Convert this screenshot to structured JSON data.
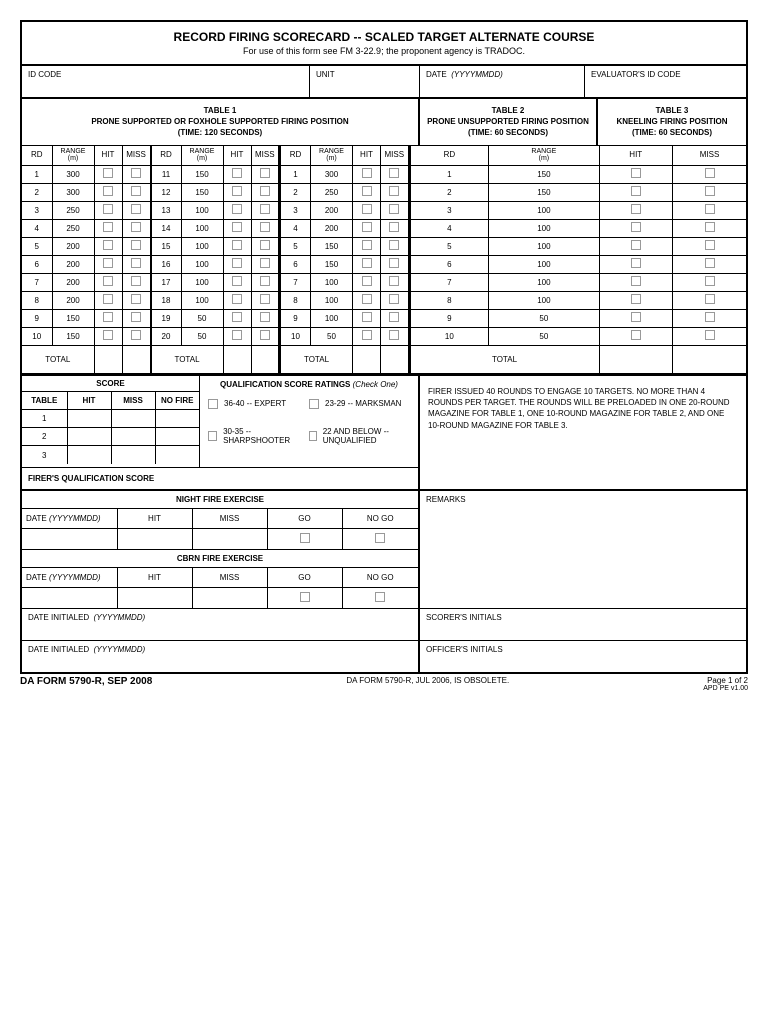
{
  "title": "RECORD FIRING SCORECARD -- SCALED TARGET ALTERNATE COURSE",
  "subtitle": "For use of this form see FM 3-22.9; the proponent agency is TRADOC.",
  "header": {
    "id_code": "ID CODE",
    "unit": "UNIT",
    "date": "DATE",
    "date_format": "(YYYYMMDD)",
    "evaluator": "EVALUATOR'S ID CODE"
  },
  "tables": {
    "table1": {
      "name": "TABLE 1",
      "position": "PRONE SUPPORTED OR FOXHOLE SUPPORTED FIRING POSITION",
      "time": "(TIME: 120 SECONDS)",
      "columns": {
        "rd": "RD",
        "range": "RANGE",
        "range_unit": "(m)",
        "hit": "HIT",
        "miss": "MISS"
      },
      "rows_a": [
        {
          "rd": "1",
          "range": "300"
        },
        {
          "rd": "2",
          "range": "300"
        },
        {
          "rd": "3",
          "range": "250"
        },
        {
          "rd": "4",
          "range": "250"
        },
        {
          "rd": "5",
          "range": "200"
        },
        {
          "rd": "6",
          "range": "200"
        },
        {
          "rd": "7",
          "range": "200"
        },
        {
          "rd": "8",
          "range": "200"
        },
        {
          "rd": "9",
          "range": "150"
        },
        {
          "rd": "10",
          "range": "150"
        }
      ],
      "rows_b": [
        {
          "rd": "11",
          "range": "150"
        },
        {
          "rd": "12",
          "range": "150"
        },
        {
          "rd": "13",
          "range": "100"
        },
        {
          "rd": "14",
          "range": "100"
        },
        {
          "rd": "15",
          "range": "100"
        },
        {
          "rd": "16",
          "range": "100"
        },
        {
          "rd": "17",
          "range": "100"
        },
        {
          "rd": "18",
          "range": "100"
        },
        {
          "rd": "19",
          "range": "50"
        },
        {
          "rd": "20",
          "range": "50"
        }
      ],
      "total": "TOTAL"
    },
    "table2": {
      "name": "TABLE 2",
      "position": "PRONE UNSUPPORTED FIRING POSITION",
      "time": "(TIME: 60 SECONDS)",
      "rows": [
        {
          "rd": "1",
          "range": "300"
        },
        {
          "rd": "2",
          "range": "250"
        },
        {
          "rd": "3",
          "range": "200"
        },
        {
          "rd": "4",
          "range": "200"
        },
        {
          "rd": "5",
          "range": "150"
        },
        {
          "rd": "6",
          "range": "150"
        },
        {
          "rd": "7",
          "range": "100"
        },
        {
          "rd": "8",
          "range": "100"
        },
        {
          "rd": "9",
          "range": "100"
        },
        {
          "rd": "10",
          "range": "50"
        }
      ],
      "total": "TOTAL"
    },
    "table3": {
      "name": "TABLE 3",
      "position": "KNEELING FIRING POSITION",
      "time": "(TIME: 60 SECONDS)",
      "rows": [
        {
          "rd": "1",
          "range": "150"
        },
        {
          "rd": "2",
          "range": "150"
        },
        {
          "rd": "3",
          "range": "100"
        },
        {
          "rd": "4",
          "range": "100"
        },
        {
          "rd": "5",
          "range": "100"
        },
        {
          "rd": "6",
          "range": "100"
        },
        {
          "rd": "7",
          "range": "100"
        },
        {
          "rd": "8",
          "range": "100"
        },
        {
          "rd": "9",
          "range": "50"
        },
        {
          "rd": "10",
          "range": "50"
        }
      ],
      "total": "TOTAL"
    }
  },
  "score": {
    "header": "SCORE",
    "columns": {
      "table": "TABLE",
      "hit": "HIT",
      "miss": "MISS",
      "nofire": "NO FIRE"
    },
    "rows": [
      "1",
      "2",
      "3"
    ],
    "firer_qual": "FIRER'S QUALIFICATION SCORE"
  },
  "qual_ratings": {
    "title": "QUALIFICATION SCORE RATINGS",
    "title_note": "(Check One)",
    "expert": "36-40 -- EXPERT",
    "marksman": "23-29 -- MARKSMAN",
    "sharpshooter": "30-35  -- SHARPSHOOTER",
    "unqualified": "22 AND BELOW  -- UNQUALIFIED"
  },
  "firer_note": "FIRER ISSUED 40 ROUNDS TO ENGAGE 10 TARGETS. NO MORE THAN 4 ROUNDS PER TARGET. THE ROUNDS WILL BE PRELOADED IN ONE 20-ROUND MAGAZINE FOR TABLE 1, ONE 10-ROUND MAGAZINE FOR TABLE 2, AND ONE 10-ROUND MAGAZINE FOR TABLE 3.",
  "night_fire": {
    "title": "NIGHT FIRE EXERCISE",
    "date": "DATE",
    "date_format": "(YYYYMMDD)",
    "hit": "HIT",
    "miss": "MISS",
    "go": "GO",
    "nogo": "NO GO"
  },
  "cbrn_fire": {
    "title": "CBRN FIRE EXERCISE"
  },
  "remarks": "REMARKS",
  "date_initialed": "DATE INITIALED",
  "date_initialed_format": "(YYYYMMDD)",
  "scorer_initials": "SCORER'S INITIALS",
  "officer_initials": "OFFICER'S INITIALS",
  "footer": {
    "form_id": "DA FORM 5790-R, SEP 2008",
    "obsolete": "DA FORM 5790-R, JUL 2006, IS OBSOLETE.",
    "page": "Page 1 of 2",
    "apd": "APD PE v1.00"
  },
  "col_widths": {
    "rd": 30,
    "range": 42,
    "hit": 28,
    "miss": 28
  }
}
